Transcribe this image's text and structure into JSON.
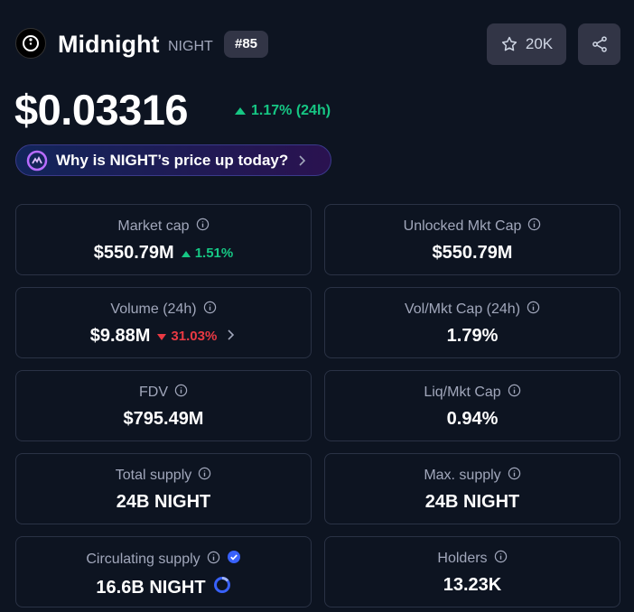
{
  "header": {
    "name": "Midnight",
    "symbol": "NIGHT",
    "rank": "#85",
    "watchlist_count": "20K"
  },
  "price": {
    "value": "$0.03316",
    "change": "1.17% (24h)",
    "direction": "up"
  },
  "banner": {
    "text": "Why is NIGHT’s price up today?"
  },
  "stats": [
    {
      "label": "Market cap",
      "value": "$550.79M",
      "change": "1.51%",
      "direction": "up"
    },
    {
      "label": "Unlocked Mkt Cap",
      "value": "$550.79M"
    },
    {
      "label": "Volume (24h)",
      "value": "$9.88M",
      "change": "31.03%",
      "direction": "down",
      "chevron": true
    },
    {
      "label": "Vol/Mkt Cap (24h)",
      "value": "1.79%"
    },
    {
      "label": "FDV",
      "value": "$795.49M"
    },
    {
      "label": "Liq/Mkt Cap",
      "value": "0.94%"
    },
    {
      "label": "Total supply",
      "value": "24B NIGHT"
    },
    {
      "label": "Max. supply",
      "value": "24B NIGHT"
    },
    {
      "label": "Circulating supply",
      "value": "16.6B NIGHT",
      "verified": true,
      "progress_ring": true
    },
    {
      "label": "Holders",
      "value": "13.23K"
    }
  ]
}
